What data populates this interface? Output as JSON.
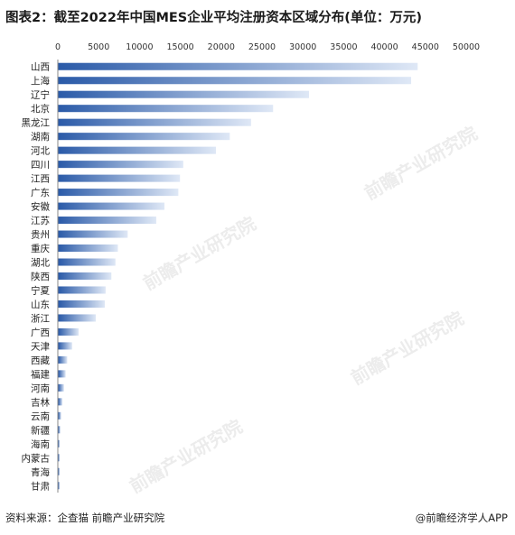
{
  "title": "图表2：截至2022年中国MES企业平均注册资本区域分布(单位：万元)",
  "footer": {
    "source": "资料来源：企查猫 前瞻产业研究院",
    "brand": "@前瞻经济学人APP"
  },
  "watermark": "前瞻产业研究院",
  "colors": {
    "bar_dark": "#2a5aa8",
    "bar_light": "#dfe8f6"
  },
  "chart_data": {
    "type": "bar",
    "orientation": "horizontal",
    "x_ticks": [
      0,
      5000,
      10000,
      15000,
      20000,
      25000,
      30000,
      35000,
      40000,
      45000,
      50000
    ],
    "xlim": [
      0,
      50000
    ],
    "grid": false,
    "categories": [
      "山西",
      "上海",
      "辽宁",
      "北京",
      "黑龙江",
      "湖南",
      "河北",
      "四川",
      "江西",
      "广东",
      "安徽",
      "江苏",
      "贵州",
      "重庆",
      "湖北",
      "陕西",
      "宁夏",
      "山东",
      "浙江",
      "广西",
      "天津",
      "西藏",
      "福建",
      "河南",
      "吉林",
      "云南",
      "新疆",
      "海南",
      "内蒙古",
      "青海",
      "甘肃"
    ],
    "values": [
      44000,
      43200,
      30700,
      26300,
      23600,
      21000,
      19300,
      15300,
      14900,
      14700,
      13000,
      12000,
      8500,
      7300,
      7000,
      6500,
      5800,
      5700,
      4600,
      2500,
      1700,
      1100,
      900,
      700,
      500,
      350,
      250,
      150,
      100,
      80,
      60
    ]
  }
}
